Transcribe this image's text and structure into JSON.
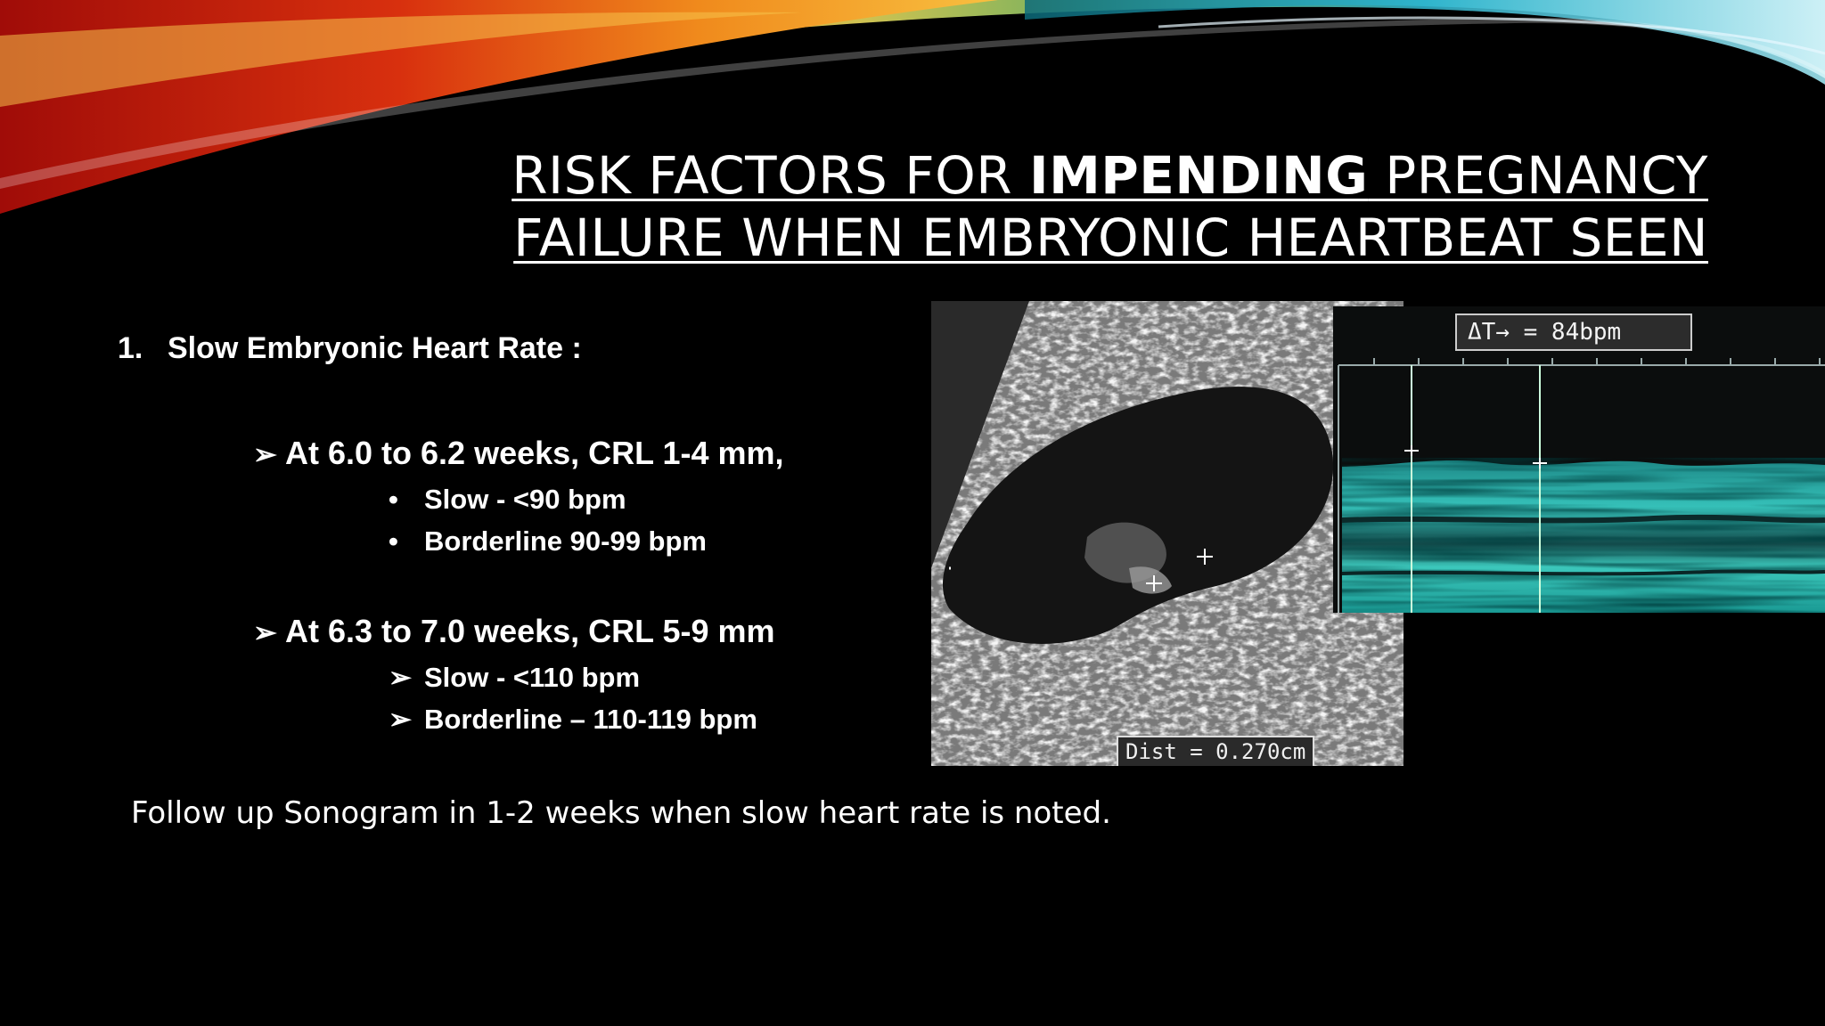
{
  "title": {
    "line1_pre": "RISK FACTORS FOR ",
    "line1_bold": "IMPENDING",
    "line1_post": " PREGNANCY",
    "line2": "FAILURE WHEN EMBRYONIC HEARTBEAT SEEN"
  },
  "item1": {
    "number": "1.",
    "label": "Slow Embryonic Heart Rate :"
  },
  "group1": {
    "marker": "➢",
    "heading": "At 6.0 to 6.2 weeks, CRL 1-4 mm,",
    "bullet_marker": "•",
    "items": [
      "Slow - <90 bpm",
      "Borderline 90-99 bpm"
    ]
  },
  "group2": {
    "marker": "➢",
    "heading": "At 6.3 to 7.0 weeks, CRL 5-9 mm",
    "item_marker": "➢",
    "items": [
      "Slow - <110 bpm",
      "Borderline – 110-119 bpm"
    ]
  },
  "followup": "Follow up Sonogram in 1-2 weeks when slow heart rate is noted.",
  "ultrasound": {
    "dist_label": "Dist = 0.270cm"
  },
  "mmode": {
    "bpm_label": "ΔT→ = 84bpm"
  },
  "colors": {
    "background": "#000000",
    "text": "#ffffff",
    "mmode_cyan": "#2ab8b0"
  }
}
